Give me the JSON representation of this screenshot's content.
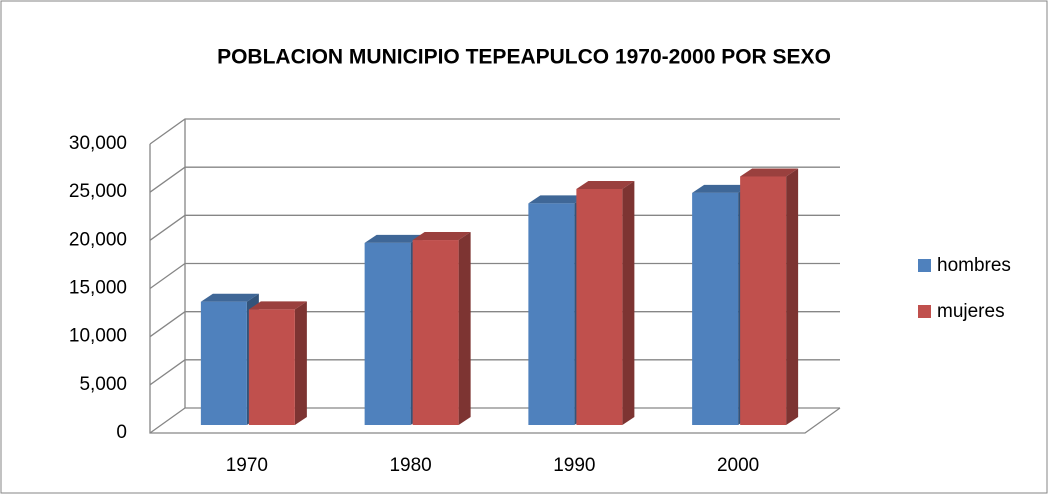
{
  "chart_data": {
    "type": "bar3d",
    "title": "POBLACION MUNICIPIO TEPEAPULCO 1970-2000 POR SEXO",
    "categories": [
      "1970",
      "1980",
      "1990",
      "2000"
    ],
    "series": [
      {
        "name": "hombres",
        "color": "#4f81bd",
        "values": [
          12800,
          18900,
          23000,
          24100
        ]
      },
      {
        "name": "mujeres",
        "color": "#c0504d",
        "values": [
          12000,
          19200,
          24500,
          25800
        ]
      }
    ],
    "ylim": [
      0,
      30000
    ],
    "yticks": [
      0,
      {
        "value": 5000,
        "label": "5,000"
      },
      {
        "value": 10000,
        "label": "10,000"
      },
      {
        "value": 15000,
        "label": "15,000"
      },
      {
        "value": 20000,
        "label": "20,000"
      },
      {
        "value": 25000,
        "label": "25,000"
      },
      {
        "value": 30000,
        "label": "30,000"
      }
    ],
    "grid": true,
    "legend": "right"
  }
}
